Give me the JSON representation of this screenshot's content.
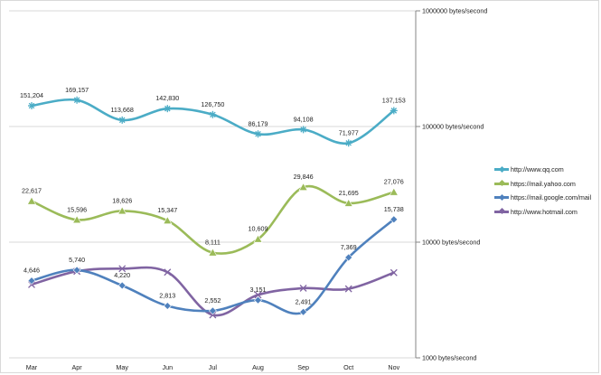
{
  "chart_data": {
    "type": "line",
    "categories": [
      "Mar",
      "Apr",
      "May",
      "Jun",
      "Jul",
      "Aug",
      "Sep",
      "Oct",
      "Nov"
    ],
    "y_scale": "log",
    "ylim": [
      1000,
      1000000
    ],
    "ytick_values": [
      1000,
      10000,
      100000,
      1000000
    ],
    "ytick_labels": [
      "1000 bytes/second",
      "10000 bytes/second",
      "100000 bytes/second",
      "1000000 bytes/second"
    ],
    "y_axis_side": "right",
    "grid": "horizontal",
    "legend_position": "right",
    "series": [
      {
        "name": "http://www.qq.com",
        "color": "#4bacc6",
        "marker": "star",
        "values": [
          151204,
          169157,
          113668,
          142830,
          126750,
          86179,
          94108,
          71977,
          137153
        ],
        "labels": [
          "151,204",
          "169,157",
          "113,668",
          "142,830",
          "126,750",
          "86,179",
          "94,108",
          "71,977",
          "137,153"
        ]
      },
      {
        "name": "https://mail.yahoo.com",
        "color": "#9bbb59",
        "marker": "triangle",
        "values": [
          22617,
          15596,
          18626,
          15347,
          8111,
          10609,
          29846,
          21695,
          27076
        ],
        "labels": [
          "22,617",
          "15,596",
          "18,626",
          "15,347",
          "8,111",
          "10,609",
          "29,846",
          "21,695",
          "27,076"
        ]
      },
      {
        "name": "https://mail.google.com/mail",
        "color": "#4f81bd",
        "marker": "diamond",
        "values": [
          4646,
          5740,
          4220,
          2813,
          2552,
          3151,
          2491,
          7369,
          15738
        ],
        "labels": [
          "4,646",
          "5,740",
          "4,220",
          "2,813",
          "2,552",
          "3,151",
          "2,491",
          "7,369",
          "15,738"
        ]
      },
      {
        "name": "http://www.hotmail.com",
        "color": "#8064a2",
        "marker": "x",
        "values": [
          4300,
          5600,
          5900,
          5500,
          2350,
          3500,
          4000,
          3950,
          5450
        ],
        "labels": []
      }
    ]
  }
}
